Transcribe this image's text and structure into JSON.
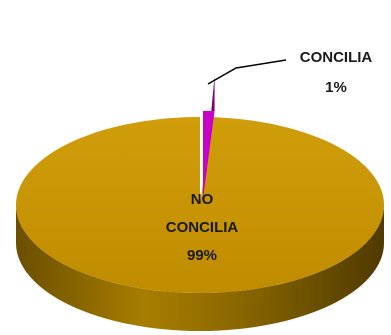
{
  "chart_data": {
    "type": "pie",
    "style": "3d-exploded",
    "start_angle": "top",
    "direction": "clockwise",
    "legend": "none",
    "slices": [
      {
        "name": "CONCILIA",
        "value": 1,
        "label": "1%",
        "color": "#c800c8",
        "label_placement": "outside-leader-line"
      },
      {
        "name": "NO CONCILIA",
        "value": 99,
        "label": "99%",
        "color": "#c89600",
        "label_placement": "inside"
      }
    ]
  },
  "labels": {
    "concilia_name": "CONCILIA",
    "concilia_value": "1%",
    "no_concilia_line1": "NO",
    "no_concilia_line2": "CONCILIA",
    "no_concilia_value": "99%"
  }
}
